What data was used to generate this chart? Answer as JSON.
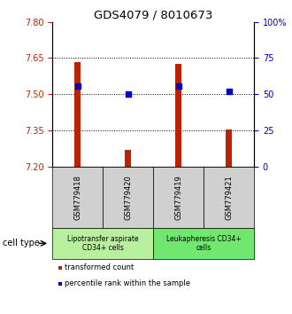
{
  "title": "GDS4079 / 8010673",
  "samples": [
    "GSM779418",
    "GSM779420",
    "GSM779419",
    "GSM779421"
  ],
  "red_values": [
    7.635,
    7.27,
    7.625,
    7.352
  ],
  "blue_values": [
    7.535,
    7.502,
    7.535,
    7.513
  ],
  "ymin": 7.2,
  "ymax": 7.8,
  "yticks_left": [
    7.2,
    7.35,
    7.5,
    7.65,
    7.8
  ],
  "yticks_right": [
    0,
    25,
    50,
    75,
    100
  ],
  "right_ymin": 0,
  "right_ymax": 100,
  "groups": [
    {
      "label": "Lipotransfer aspirate\nCD34+ cells",
      "samples": [
        0,
        1
      ],
      "color": "#b8f0a0"
    },
    {
      "label": "Leukapheresis CD34+\ncells",
      "samples": [
        2,
        3
      ],
      "color": "#70e870"
    }
  ],
  "group_box_color": "#d0d0d0",
  "legend_red_label": "transformed count",
  "legend_blue_label": "percentile rank within the sample",
  "cell_type_label": "cell type",
  "red_color": "#bb2200",
  "blue_color": "#0000cc",
  "bar_width": 0.12,
  "blue_marker_size": 25,
  "xlim": [
    0.5,
    4.5
  ]
}
